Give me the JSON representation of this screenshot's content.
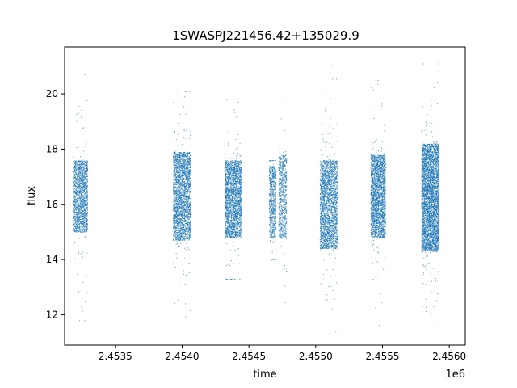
{
  "chart_data": {
    "type": "scatter",
    "title": "1SWASPJ221456.42+135029.9",
    "xlabel": "time",
    "ylabel": "flux",
    "x_offset_label": "1e6",
    "xlim": [
      2453120,
      2456120
    ],
    "ylim": [
      10.9,
      21.7
    ],
    "x_ticks": [
      2453500,
      2454000,
      2454500,
      2455000,
      2455500,
      2456000
    ],
    "x_tick_labels": [
      "2.4535",
      "2.4540",
      "2.4545",
      "2.4550",
      "2.4555",
      "2.4560"
    ],
    "y_ticks": [
      12,
      14,
      16,
      18,
      20
    ],
    "y_tick_labels": [
      "12",
      "14",
      "16",
      "18",
      "20"
    ],
    "grid": false,
    "marker_color": "#1f77b4",
    "series": [
      {
        "clusters": [
          {
            "x_range": [
              2453180,
              2453290
            ],
            "core_y": [
              15.0,
              17.6
            ],
            "y_span": [
              11.8,
              20.7
            ],
            "count": 1800
          },
          {
            "x_range": [
              2453930,
              2454060
            ],
            "core_y": [
              14.7,
              17.9
            ],
            "y_span": [
              11.5,
              20.1
            ],
            "count": 2600
          },
          {
            "x_range": [
              2454320,
              2454440
            ],
            "core_y": [
              14.8,
              17.6
            ],
            "y_span": [
              13.3,
              20.5
            ],
            "count": 2400
          },
          {
            "x_range": [
              2454650,
              2454700
            ],
            "core_y": [
              14.8,
              17.4
            ],
            "y_span": [
              14.0,
              17.6
            ],
            "count": 700
          },
          {
            "x_range": [
              2454720,
              2454780
            ],
            "core_y": [
              14.8,
              17.8
            ],
            "y_span": [
              11.7,
              19.9
            ],
            "count": 700
          },
          {
            "x_range": [
              2455030,
              2455160
            ],
            "core_y": [
              14.4,
              17.6
            ],
            "y_span": [
              11.4,
              21.2
            ],
            "count": 2400
          },
          {
            "x_range": [
              2455410,
              2455520
            ],
            "core_y": [
              14.8,
              17.8
            ],
            "y_span": [
              11.4,
              20.5
            ],
            "count": 2400
          },
          {
            "x_range": [
              2455790,
              2455920
            ],
            "core_y": [
              14.3,
              18.2
            ],
            "y_span": [
              11.5,
              21.1
            ],
            "count": 4200
          }
        ]
      }
    ]
  }
}
